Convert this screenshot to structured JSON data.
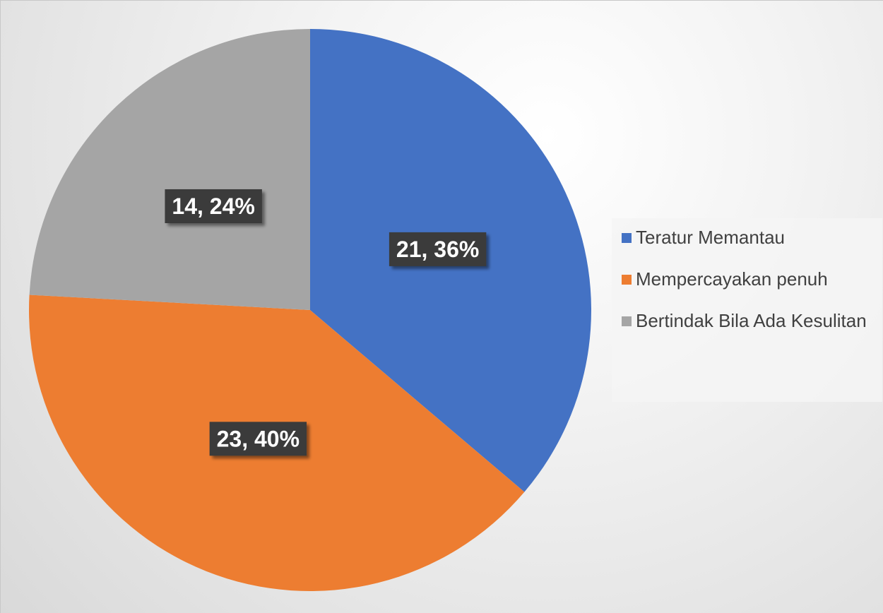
{
  "chart_data": {
    "type": "pie",
    "categories": [
      "Teratur Memantau",
      "Mempercayakan penuh",
      "Bertindak Bila Ada Kesulitan"
    ],
    "values": [
      21,
      23,
      14
    ],
    "value_labels": [
      "21, 36%",
      "23, 40%",
      "14, 24%"
    ],
    "colors": [
      "#4472c4",
      "#ed7d31",
      "#a5a5a5"
    ],
    "legend": "right"
  }
}
